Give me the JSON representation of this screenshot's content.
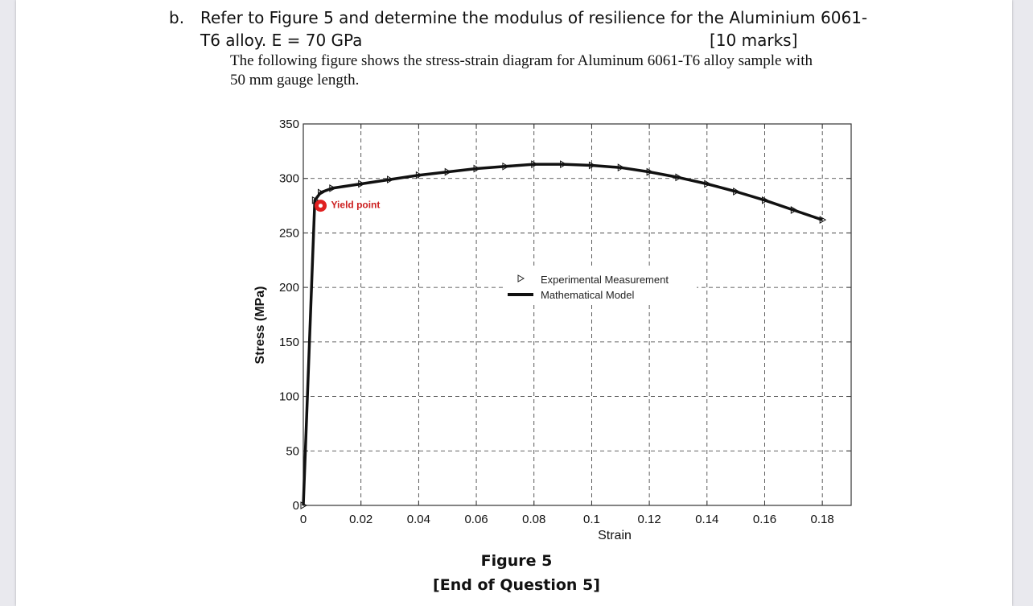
{
  "question": {
    "label": "b.",
    "line1": "Refer to Figure 5 and determine the modulus of resilience for the Aluminium 6061-",
    "line2": "T6 alloy. E = 70 GPa",
    "marks": "[10 marks]"
  },
  "description": {
    "line1": "The following figure shows the stress-strain diagram for Aluminum 6061-T6 alloy sample with",
    "line2": "50 mm gauge length."
  },
  "figure": {
    "caption": "Figure 5",
    "end_note": "[End of Question 5]"
  },
  "colors": {
    "curve": "#111111",
    "grid": "#333333",
    "yield_marker": "#e02020",
    "annotation_text": "#cc1f1f"
  },
  "chart_data": {
    "type": "line",
    "xlabel": "Strain",
    "ylabel": "Stress (MPa)",
    "xlim": [
      0,
      0.19
    ],
    "ylim": [
      0,
      350
    ],
    "xticks": [
      0,
      0.02,
      0.04,
      0.06,
      0.08,
      0.1,
      0.12,
      0.14,
      0.16,
      0.18
    ],
    "xtick_labels": [
      "0",
      "0.02",
      "0.04",
      "0.06",
      "0.08",
      "0.1",
      "0.12",
      "0.14",
      "0.16",
      "0.18"
    ],
    "yticks": [
      0,
      50,
      100,
      150,
      200,
      250,
      300,
      350
    ],
    "ytick_labels": [
      "0",
      "50",
      "100",
      "150",
      "200",
      "250",
      "300",
      "350"
    ],
    "grid": true,
    "legend": {
      "placement": "center",
      "entries": [
        "Experimental Measurement",
        "Mathematical Model"
      ]
    },
    "series": [
      {
        "name": "Experimental Measurement",
        "marker": "triangle-right",
        "x": [
          0.0,
          0.004,
          0.006,
          0.01,
          0.02,
          0.03,
          0.04,
          0.05,
          0.06,
          0.07,
          0.08,
          0.09,
          0.1,
          0.11,
          0.12,
          0.13,
          0.14,
          0.15,
          0.16,
          0.17,
          0.18
        ],
        "y": [
          0,
          280,
          287,
          291,
          295,
          299,
          303,
          306,
          309,
          311,
          313,
          313,
          312,
          310,
          306,
          301,
          295,
          288,
          280,
          271,
          262
        ]
      },
      {
        "name": "Mathematical Model",
        "x": [
          0.0,
          0.004,
          0.006,
          0.01,
          0.02,
          0.03,
          0.04,
          0.05,
          0.06,
          0.07,
          0.08,
          0.09,
          0.1,
          0.11,
          0.12,
          0.13,
          0.14,
          0.15,
          0.16,
          0.17,
          0.18
        ],
        "y": [
          0,
          280,
          287,
          291,
          295,
          299,
          303,
          306,
          309,
          311,
          313,
          313,
          312,
          310,
          306,
          301,
          295,
          288,
          280,
          271,
          262
        ]
      }
    ],
    "annotations": [
      {
        "text": "Yield point",
        "x": 0.006,
        "y": 275
      }
    ]
  }
}
